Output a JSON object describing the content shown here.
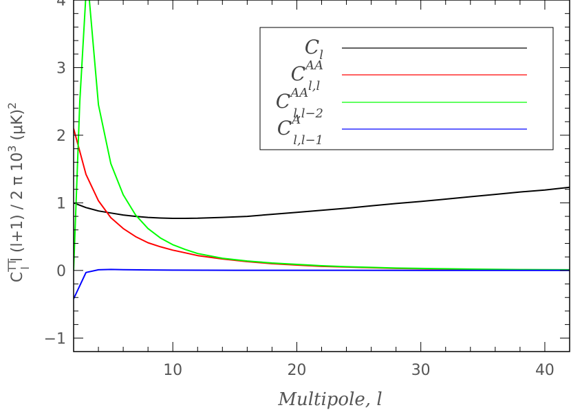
{
  "chart_data": {
    "type": "line",
    "title": "",
    "xlabel": "Multipole,  l",
    "ylabel": {
      "main": "C",
      "main_sup": "TT",
      "main_sub": "l",
      "rest": " l (l+1) / 2 π 10",
      "rest_sup": "3",
      "unit": " (μK)",
      "unit_sup": "2"
    },
    "xlim": [
      2,
      42
    ],
    "ylim": [
      -1.2,
      4
    ],
    "xticks": [
      10,
      20,
      30,
      40
    ],
    "yticks": [
      -1,
      0,
      1,
      2,
      3,
      4
    ],
    "grid": false,
    "legend_position": "top-right",
    "series": [
      {
        "label": {
          "base": "C",
          "sub": "l",
          "sup": ""
        },
        "color": "#000000",
        "x": [
          2,
          3,
          4,
          5,
          6,
          7,
          8,
          9,
          10,
          11,
          12,
          14,
          16,
          18,
          20,
          22,
          24,
          26,
          28,
          30,
          32,
          34,
          36,
          38,
          40,
          42
        ],
        "y": [
          1.0,
          0.93,
          0.88,
          0.85,
          0.82,
          0.8,
          0.785,
          0.775,
          0.77,
          0.77,
          0.772,
          0.785,
          0.8,
          0.83,
          0.86,
          0.89,
          0.92,
          0.955,
          0.99,
          1.02,
          1.055,
          1.09,
          1.125,
          1.16,
          1.19,
          1.23
        ]
      },
      {
        "label": {
          "base": "C",
          "sub": "l,l",
          "sup": "AA"
        },
        "color": "#ff0000",
        "x": [
          2,
          3,
          4,
          5,
          6,
          7,
          8,
          9,
          10,
          11,
          12,
          14,
          16,
          18,
          20,
          22,
          24,
          26,
          28,
          30,
          32,
          34,
          36,
          38,
          40,
          42
        ],
        "y": [
          2.1,
          1.42,
          1.03,
          0.78,
          0.62,
          0.5,
          0.41,
          0.35,
          0.3,
          0.26,
          0.22,
          0.17,
          0.13,
          0.1,
          0.08,
          0.06,
          0.05,
          0.04,
          0.03,
          0.025,
          0.02,
          0.015,
          0.012,
          0.01,
          0.008,
          0.007
        ]
      },
      {
        "label": {
          "base": "C",
          "sub": "l,l−2",
          "sup": "AA"
        },
        "color": "#00ff00",
        "x": [
          2,
          2.5,
          3,
          3.2,
          4,
          5,
          6,
          7,
          8,
          9,
          10,
          11,
          12,
          14,
          16,
          18,
          20,
          22,
          24,
          26,
          28,
          30,
          32,
          34,
          36,
          38,
          40,
          42
        ],
        "y": [
          0.0,
          2.5,
          4.1,
          4.15,
          2.45,
          1.58,
          1.12,
          0.82,
          0.62,
          0.48,
          0.38,
          0.31,
          0.25,
          0.18,
          0.14,
          0.11,
          0.09,
          0.07,
          0.055,
          0.045,
          0.035,
          0.03,
          0.025,
          0.02,
          0.016,
          0.013,
          0.011,
          0.01
        ]
      },
      {
        "label": {
          "base": "C",
          "sub": "l,l−1",
          "sup": "A"
        },
        "color": "#0000ff",
        "x": [
          2,
          3,
          4,
          5,
          6,
          8,
          10,
          15,
          20,
          30,
          42
        ],
        "y": [
          -0.42,
          -0.03,
          0.01,
          0.015,
          0.012,
          0.008,
          0.005,
          0.003,
          0.002,
          0.001,
          0.0
        ]
      }
    ]
  }
}
